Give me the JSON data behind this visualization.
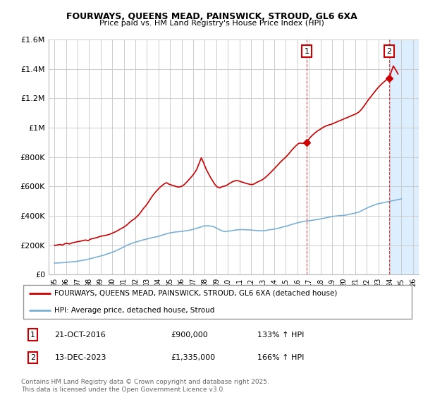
{
  "title": "FOURWAYS, QUEENS MEAD, PAINSWICK, STROUD, GL6 6XA",
  "subtitle": "Price paid vs. HM Land Registry's House Price Index (HPI)",
  "legend_line1": "FOURWAYS, QUEENS MEAD, PAINSWICK, STROUD, GL6 6XA (detached house)",
  "legend_line2": "HPI: Average price, detached house, Stroud",
  "annotation1": {
    "label": "1",
    "date": "21-OCT-2016",
    "price": "£900,000",
    "hpi": "133% ↑ HPI",
    "x_year": 2016.8,
    "y_val": 900000
  },
  "annotation2": {
    "label": "2",
    "date": "13-DEC-2023",
    "price": "£1,335,000",
    "hpi": "166% ↑ HPI",
    "x_year": 2023.95,
    "y_val": 1335000
  },
  "footer": "Contains HM Land Registry data © Crown copyright and database right 2025.\nThis data is licensed under the Open Government Licence v3.0.",
  "red_color": "#cc0000",
  "blue_color": "#7ab0d4",
  "shade_color": "#ddeeff",
  "xmin": 1994.5,
  "xmax": 2026.5,
  "ymin": 0,
  "ymax": 1600000,
  "yticks": [
    0,
    200000,
    400000,
    600000,
    800000,
    1000000,
    1200000,
    1400000,
    1600000
  ],
  "ytick_labels": [
    "£0",
    "£200K",
    "£400K",
    "£600K",
    "£800K",
    "£1M",
    "£1.2M",
    "£1.4M",
    "£1.6M"
  ],
  "red_x": [
    1995.0,
    1995.1,
    1995.3,
    1995.5,
    1995.7,
    1995.9,
    1996.1,
    1996.3,
    1996.5,
    1996.7,
    1996.9,
    1997.1,
    1997.3,
    1997.5,
    1997.7,
    1997.9,
    1998.1,
    1998.3,
    1998.5,
    1998.7,
    1998.9,
    1999.1,
    1999.3,
    1999.5,
    1999.7,
    1999.9,
    2000.1,
    2000.3,
    2000.5,
    2000.7,
    2000.9,
    2001.1,
    2001.3,
    2001.5,
    2001.7,
    2001.9,
    2002.1,
    2002.3,
    2002.5,
    2002.7,
    2002.9,
    2003.1,
    2003.3,
    2003.5,
    2003.7,
    2003.9,
    2004.1,
    2004.3,
    2004.5,
    2004.7,
    2004.9,
    2005.1,
    2005.3,
    2005.5,
    2005.7,
    2005.9,
    2006.1,
    2006.3,
    2006.5,
    2006.7,
    2006.9,
    2007.1,
    2007.3,
    2007.5,
    2007.7,
    2007.9,
    2008.1,
    2008.3,
    2008.5,
    2008.7,
    2008.9,
    2009.1,
    2009.3,
    2009.5,
    2009.7,
    2009.9,
    2010.1,
    2010.3,
    2010.5,
    2010.7,
    2010.9,
    2011.1,
    2011.3,
    2011.5,
    2011.7,
    2011.9,
    2012.1,
    2012.3,
    2012.5,
    2012.7,
    2012.9,
    2013.1,
    2013.3,
    2013.5,
    2013.7,
    2013.9,
    2014.1,
    2014.3,
    2014.5,
    2014.7,
    2014.9,
    2015.1,
    2015.3,
    2015.5,
    2015.7,
    2015.9,
    2016.1,
    2016.3,
    2016.5,
    2016.8,
    2017.1,
    2017.3,
    2017.5,
    2017.7,
    2017.9,
    2018.1,
    2018.3,
    2018.5,
    2018.7,
    2018.9,
    2019.1,
    2019.3,
    2019.5,
    2019.7,
    2019.9,
    2020.1,
    2020.3,
    2020.5,
    2020.7,
    2020.9,
    2021.1,
    2021.3,
    2021.5,
    2021.7,
    2021.9,
    2022.1,
    2022.3,
    2022.5,
    2022.7,
    2022.9,
    2023.1,
    2023.3,
    2023.5,
    2023.7,
    2023.95,
    2024.1,
    2024.3,
    2024.5,
    2024.7
  ],
  "red_y": [
    200000,
    198000,
    202000,
    205000,
    200000,
    210000,
    212000,
    208000,
    215000,
    218000,
    222000,
    225000,
    228000,
    232000,
    235000,
    230000,
    240000,
    245000,
    248000,
    252000,
    258000,
    262000,
    265000,
    268000,
    272000,
    278000,
    285000,
    292000,
    300000,
    310000,
    318000,
    328000,
    340000,
    355000,
    368000,
    378000,
    392000,
    408000,
    428000,
    450000,
    468000,
    490000,
    515000,
    538000,
    558000,
    575000,
    592000,
    605000,
    618000,
    625000,
    615000,
    610000,
    605000,
    600000,
    595000,
    598000,
    605000,
    618000,
    635000,
    652000,
    670000,
    690000,
    715000,
    755000,
    795000,
    760000,
    720000,
    690000,
    660000,
    635000,
    610000,
    595000,
    590000,
    598000,
    602000,
    608000,
    618000,
    628000,
    635000,
    640000,
    638000,
    632000,
    628000,
    622000,
    618000,
    614000,
    612000,
    618000,
    628000,
    635000,
    642000,
    652000,
    665000,
    680000,
    695000,
    712000,
    728000,
    745000,
    762000,
    778000,
    792000,
    808000,
    825000,
    845000,
    862000,
    878000,
    892000,
    895000,
    892000,
    900000,
    932000,
    948000,
    962000,
    975000,
    985000,
    995000,
    1005000,
    1012000,
    1018000,
    1022000,
    1028000,
    1035000,
    1042000,
    1048000,
    1055000,
    1062000,
    1068000,
    1075000,
    1082000,
    1088000,
    1095000,
    1105000,
    1120000,
    1140000,
    1162000,
    1185000,
    1205000,
    1225000,
    1245000,
    1265000,
    1282000,
    1298000,
    1312000,
    1325000,
    1335000,
    1375000,
    1420000,
    1395000,
    1365000
  ],
  "blue_x": [
    1995.0,
    1995.3,
    1995.6,
    1995.9,
    1996.2,
    1996.5,
    1996.8,
    1997.1,
    1997.4,
    1997.7,
    1998.0,
    1998.3,
    1998.6,
    1998.9,
    1999.2,
    1999.5,
    1999.8,
    2000.1,
    2000.4,
    2000.7,
    2001.0,
    2001.3,
    2001.6,
    2001.9,
    2002.2,
    2002.5,
    2002.8,
    2003.1,
    2003.4,
    2003.7,
    2004.0,
    2004.3,
    2004.6,
    2004.9,
    2005.2,
    2005.5,
    2005.8,
    2006.1,
    2006.4,
    2006.7,
    2007.0,
    2007.3,
    2007.6,
    2007.9,
    2008.2,
    2008.5,
    2008.8,
    2009.1,
    2009.4,
    2009.7,
    2010.0,
    2010.3,
    2010.6,
    2010.9,
    2011.2,
    2011.5,
    2011.8,
    2012.1,
    2012.4,
    2012.7,
    2013.0,
    2013.3,
    2013.6,
    2013.9,
    2014.2,
    2014.5,
    2014.8,
    2015.1,
    2015.4,
    2015.7,
    2016.0,
    2016.3,
    2016.6,
    2016.9,
    2017.2,
    2017.5,
    2017.8,
    2018.1,
    2018.4,
    2018.7,
    2019.0,
    2019.3,
    2019.6,
    2019.9,
    2020.2,
    2020.5,
    2020.8,
    2021.1,
    2021.4,
    2021.7,
    2022.0,
    2022.3,
    2022.6,
    2022.9,
    2023.2,
    2023.5,
    2023.8,
    2024.1,
    2024.4,
    2024.7,
    2025.0
  ],
  "blue_y": [
    78000,
    79000,
    80000,
    82000,
    84000,
    86000,
    88000,
    92000,
    96000,
    100000,
    106000,
    112000,
    118000,
    124000,
    130000,
    138000,
    146000,
    154000,
    165000,
    176000,
    188000,
    200000,
    210000,
    218000,
    225000,
    232000,
    238000,
    244000,
    250000,
    255000,
    260000,
    268000,
    275000,
    282000,
    286000,
    290000,
    292000,
    295000,
    298000,
    302000,
    308000,
    315000,
    322000,
    330000,
    332000,
    330000,
    325000,
    312000,
    300000,
    292000,
    295000,
    298000,
    302000,
    305000,
    306000,
    305000,
    304000,
    302000,
    300000,
    298000,
    298000,
    300000,
    305000,
    308000,
    312000,
    318000,
    325000,
    330000,
    338000,
    345000,
    352000,
    358000,
    362000,
    365000,
    368000,
    372000,
    376000,
    380000,
    385000,
    390000,
    395000,
    398000,
    400000,
    402000,
    405000,
    410000,
    415000,
    420000,
    428000,
    440000,
    452000,
    462000,
    472000,
    480000,
    485000,
    490000,
    495000,
    500000,
    505000,
    510000,
    515000
  ]
}
